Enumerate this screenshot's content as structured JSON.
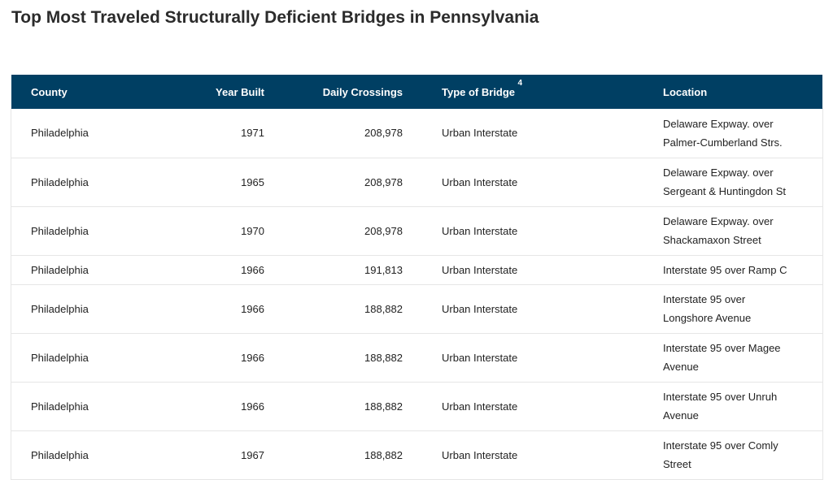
{
  "page": {
    "title": "Top Most Traveled Structurally Deficient Bridges in Pennsylvania"
  },
  "table": {
    "headers": {
      "county": "County",
      "year_built": "Year Built",
      "daily_crossings": "Daily Crossings",
      "type_of_bridge": "Type of Bridge",
      "type_footnote": "4",
      "location": "Location"
    },
    "rows": [
      {
        "county": "Philadelphia",
        "year": "1971",
        "crossings": "208,978",
        "type": "Urban Interstate",
        "location_1": "Delaware Expway. over",
        "location_2": "Palmer-Cumberland Strs."
      },
      {
        "county": "Philadelphia",
        "year": "1965",
        "crossings": "208,978",
        "type": "Urban Interstate",
        "location_1": "Delaware Expway. over",
        "location_2": "Sergeant & Huntingdon St"
      },
      {
        "county": "Philadelphia",
        "year": "1970",
        "crossings": "208,978",
        "type": "Urban Interstate",
        "location_1": "Delaware Expway. over",
        "location_2": "Shackamaxon Street"
      },
      {
        "county": "Philadelphia",
        "year": "1966",
        "crossings": "191,813",
        "type": "Urban Interstate",
        "location_1": "Interstate 95 over Ramp C",
        "location_2": ""
      },
      {
        "county": "Philadelphia",
        "year": "1966",
        "crossings": "188,882",
        "type": "Urban Interstate",
        "location_1": "Interstate 95 over",
        "location_2": "Longshore Avenue"
      },
      {
        "county": "Philadelphia",
        "year": "1966",
        "crossings": "188,882",
        "type": "Urban Interstate",
        "location_1": "Interstate 95 over Magee",
        "location_2": "Avenue"
      },
      {
        "county": "Philadelphia",
        "year": "1966",
        "crossings": "188,882",
        "type": "Urban Interstate",
        "location_1": "Interstate 95 over Unruh",
        "location_2": "Avenue"
      },
      {
        "county": "Philadelphia",
        "year": "1967",
        "crossings": "188,882",
        "type": "Urban Interstate",
        "location_1": "Interstate 95 over Comly",
        "location_2": "Street"
      }
    ]
  },
  "colors": {
    "header_bg": "#003f63",
    "header_text": "#ffffff",
    "row_border": "#e6e6e6"
  }
}
